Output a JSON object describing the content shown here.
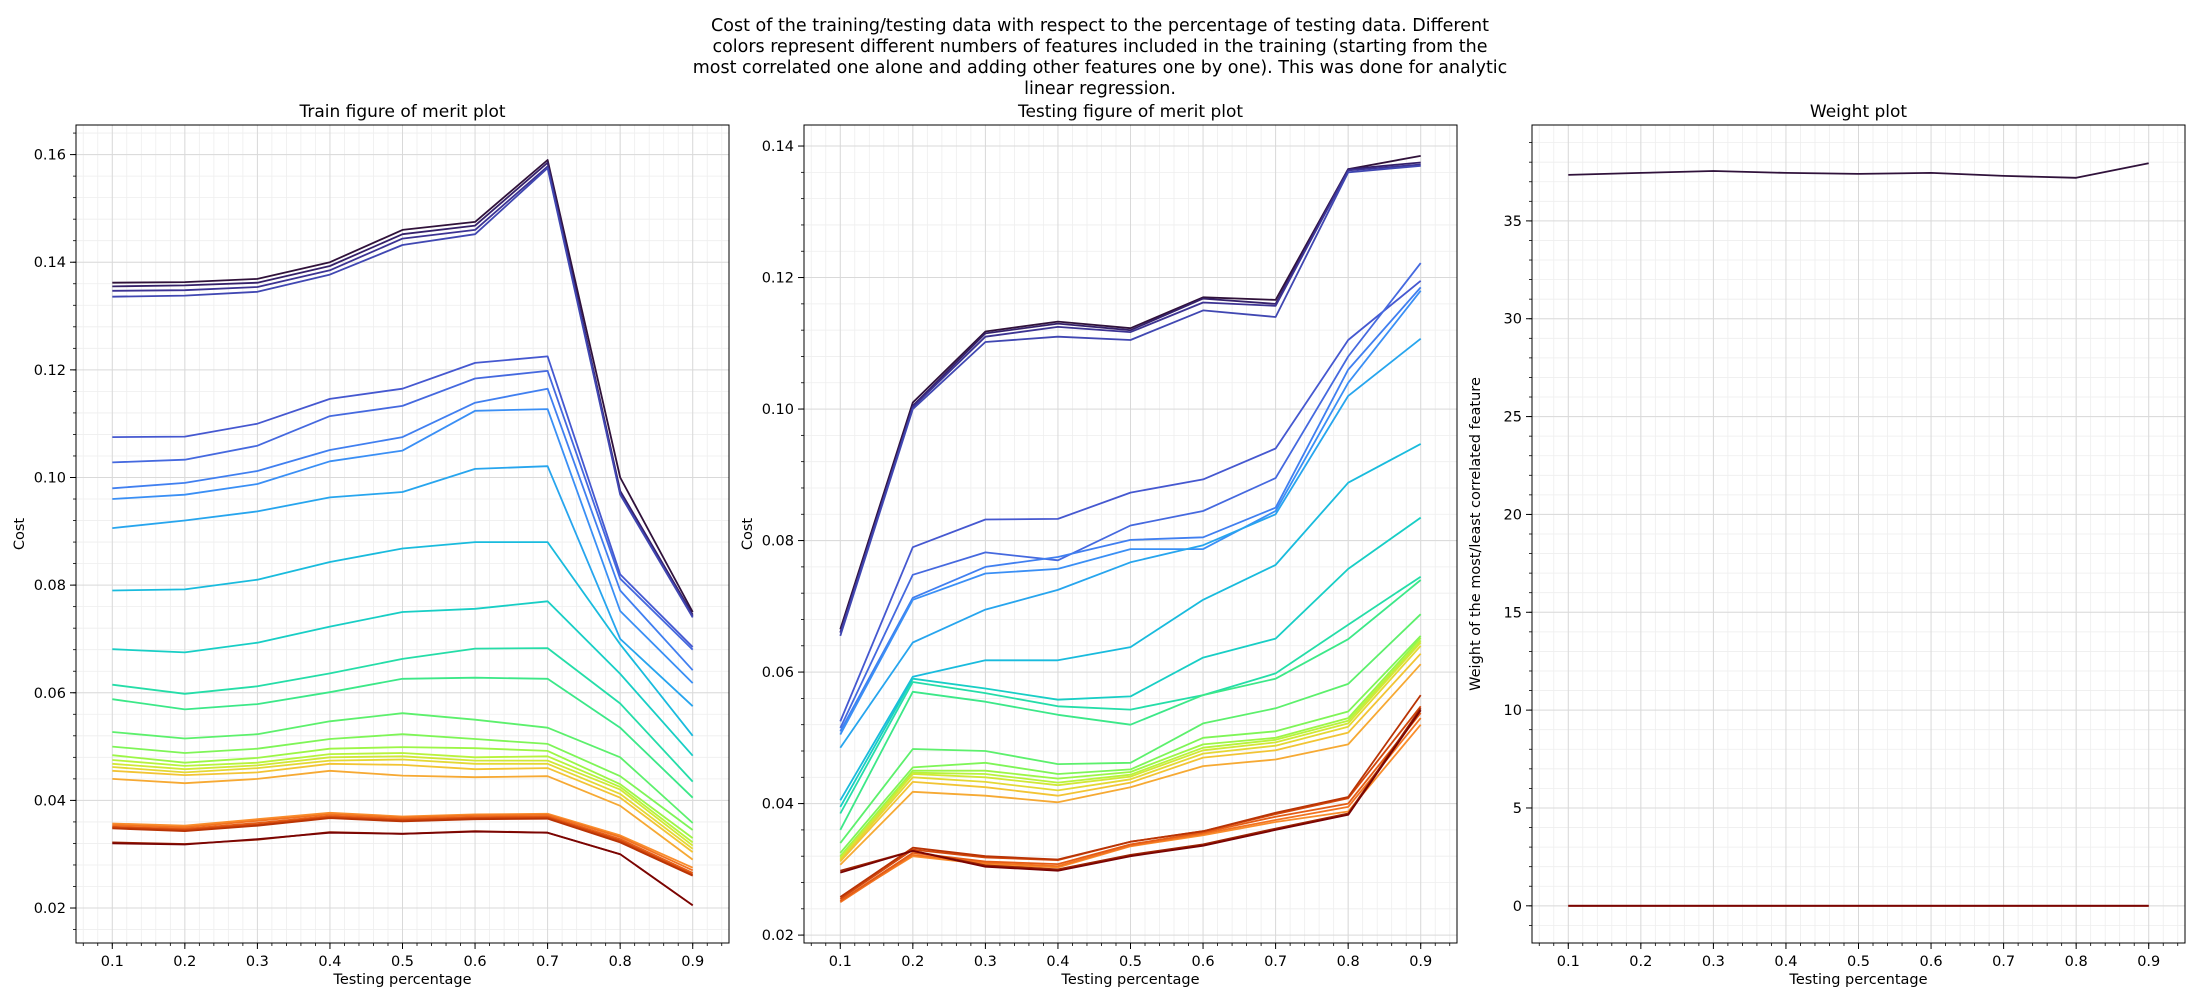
{
  "suptitle": "Cost of the training/testing data with respect to the percentage of testing data. Different\ncolors represent different numbers of features included in the training (starting from the\nmost correlated one alone and adding other features one by one). This was done for analytic\nlinear regression.",
  "chart_data": [
    {
      "type": "line",
      "title": "Train figure of merit plot",
      "xlabel": "Testing percentage",
      "ylabel": "Cost",
      "xlim": [
        0.05,
        0.95
      ],
      "ylim": [
        0.0135,
        0.1655
      ],
      "xticks": [
        "0.1",
        "0.2",
        "0.3",
        "0.4",
        "0.5",
        "0.6",
        "0.7",
        "0.8",
        "0.9"
      ],
      "yticks": [
        "0.02",
        "0.04",
        "0.06",
        "0.08",
        "0.10",
        "0.12",
        "0.14",
        "0.16"
      ],
      "grid": true,
      "x": [
        0.1,
        0.2,
        0.3,
        0.4,
        0.5,
        0.6,
        0.7,
        0.8,
        0.9
      ],
      "series": [
        {
          "color": "#30123b",
          "values": [
            0.1362,
            0.1363,
            0.1369,
            0.14,
            0.146,
            0.1475,
            0.159,
            0.1,
            0.075
          ]
        },
        {
          "color": "#35206a",
          "values": [
            0.1355,
            0.1357,
            0.1362,
            0.1393,
            0.1452,
            0.1468,
            0.1585,
            0.0975,
            0.0745
          ]
        },
        {
          "color": "#3c3393",
          "values": [
            0.1347,
            0.1348,
            0.1354,
            0.1385,
            0.1444,
            0.146,
            0.1578,
            0.097,
            0.0742
          ]
        },
        {
          "color": "#4047b2",
          "values": [
            0.1336,
            0.1338,
            0.1345,
            0.1377,
            0.1432,
            0.1452,
            0.1575,
            0.0968,
            0.074
          ]
        },
        {
          "color": "#4558d0",
          "values": [
            0.1075,
            0.1076,
            0.11,
            0.1146,
            0.1165,
            0.1213,
            0.1225,
            0.082,
            0.0685
          ]
        },
        {
          "color": "#4569df",
          "values": [
            0.1028,
            0.1033,
            0.1059,
            0.1114,
            0.1133,
            0.1184,
            0.1198,
            0.0812,
            0.068
          ]
        },
        {
          "color": "#407ff0",
          "values": [
            0.098,
            0.099,
            0.1012,
            0.1051,
            0.1075,
            0.1139,
            0.1165,
            0.079,
            0.0642
          ]
        },
        {
          "color": "#3a8ff5",
          "values": [
            0.096,
            0.0968,
            0.0988,
            0.103,
            0.105,
            0.1124,
            0.1127,
            0.0752,
            0.0618
          ]
        },
        {
          "color": "#27a5ee",
          "values": [
            0.0906,
            0.092,
            0.0937,
            0.0963,
            0.0973,
            0.1016,
            0.1021,
            0.07,
            0.0575
          ]
        },
        {
          "color": "#19bbdd",
          "values": [
            0.079,
            0.0792,
            0.081,
            0.0843,
            0.0868,
            0.088,
            0.088,
            0.069,
            0.052
          ]
        },
        {
          "color": "#18cec5",
          "values": [
            0.0681,
            0.0675,
            0.0693,
            0.0723,
            0.075,
            0.0756,
            0.077,
            0.0635,
            0.0483
          ]
        },
        {
          "color": "#25dda8",
          "values": [
            0.0615,
            0.0598,
            0.0612,
            0.0636,
            0.0663,
            0.0682,
            0.0683,
            0.058,
            0.0435
          ]
        },
        {
          "color": "#3ce888",
          "values": [
            0.0588,
            0.0569,
            0.0579,
            0.0601,
            0.0626,
            0.0628,
            0.0626,
            0.0535,
            0.0405
          ]
        },
        {
          "color": "#5cf06c",
          "values": [
            0.0527,
            0.0515,
            0.0523,
            0.0547,
            0.0562,
            0.055,
            0.0535,
            0.048,
            0.0358
          ]
        },
        {
          "color": "#7ef557",
          "values": [
            0.05,
            0.0488,
            0.0496,
            0.0514,
            0.0523,
            0.0514,
            0.0505,
            0.0445,
            0.0345
          ]
        },
        {
          "color": "#9cf646",
          "values": [
            0.0484,
            0.047,
            0.0479,
            0.0496,
            0.0499,
            0.0497,
            0.0492,
            0.043,
            0.033
          ]
        },
        {
          "color": "#b8f33c",
          "values": [
            0.0475,
            0.0464,
            0.047,
            0.0486,
            0.0488,
            0.048,
            0.0482,
            0.0425,
            0.0322
          ]
        },
        {
          "color": "#d1e836",
          "values": [
            0.0468,
            0.0458,
            0.0465,
            0.048,
            0.0482,
            0.0474,
            0.0474,
            0.042,
            0.0316
          ]
        },
        {
          "color": "#e4d834",
          "values": [
            0.0462,
            0.0452,
            0.046,
            0.0474,
            0.0476,
            0.0468,
            0.0468,
            0.0412,
            0.031
          ]
        },
        {
          "color": "#f2c434",
          "values": [
            0.0455,
            0.0447,
            0.0452,
            0.0468,
            0.0466,
            0.0458,
            0.046,
            0.0405,
            0.0304
          ]
        },
        {
          "color": "#f6a933",
          "values": [
            0.044,
            0.0432,
            0.044,
            0.0455,
            0.0446,
            0.0443,
            0.0445,
            0.039,
            0.029
          ]
        },
        {
          "color": "#f98d2c",
          "values": [
            0.0357,
            0.0353,
            0.0365,
            0.0377,
            0.037,
            0.0374,
            0.0375,
            0.0335,
            0.0275
          ]
        },
        {
          "color": "#f27321",
          "values": [
            0.0354,
            0.035,
            0.0362,
            0.0374,
            0.0368,
            0.0372,
            0.0373,
            0.0332,
            0.027
          ]
        },
        {
          "color": "#e45c15",
          "values": [
            0.0351,
            0.0347,
            0.0358,
            0.0371,
            0.0365,
            0.0369,
            0.037,
            0.0328,
            0.0265
          ]
        },
        {
          "color": "#d1460a",
          "values": [
            0.035,
            0.0345,
            0.0355,
            0.0369,
            0.0363,
            0.0367,
            0.0368,
            0.0325,
            0.0262
          ]
        },
        {
          "color": "#b93405",
          "values": [
            0.0348,
            0.0343,
            0.0353,
            0.0367,
            0.0361,
            0.0365,
            0.0366,
            0.0322,
            0.026
          ]
        },
        {
          "color": "#9b2303",
          "values": [
            0.0322,
            0.0319,
            0.0327,
            0.0341,
            0.0338,
            0.0343,
            0.034,
            0.03,
            0.0205
          ]
        },
        {
          "color": "#7a0403",
          "values": [
            0.032,
            0.0318,
            0.0328,
            0.034,
            0.0338,
            0.0342,
            0.034,
            0.03,
            0.0205
          ]
        }
      ]
    },
    {
      "type": "line",
      "title": "Testing figure of merit plot",
      "xlabel": "Testing percentage",
      "ylabel": "Cost",
      "xlim": [
        0.05,
        0.95
      ],
      "ylim": [
        0.0188,
        0.1432
      ],
      "xticks": [
        "0.1",
        "0.2",
        "0.3",
        "0.4",
        "0.5",
        "0.6",
        "0.7",
        "0.8",
        "0.9"
      ],
      "yticks": [
        "0.02",
        "0.04",
        "0.06",
        "0.08",
        "0.10",
        "0.12",
        "0.14"
      ],
      "grid": true,
      "x": [
        0.1,
        0.2,
        0.3,
        0.4,
        0.5,
        0.6,
        0.7,
        0.8,
        0.9
      ],
      "series": [
        {
          "color": "#30123b",
          "values": [
            0.0665,
            0.101,
            0.1118,
            0.1133,
            0.1123,
            0.117,
            0.1166,
            0.1365,
            0.1385
          ]
        },
        {
          "color": "#35206a",
          "values": [
            0.066,
            0.1005,
            0.1115,
            0.113,
            0.112,
            0.1168,
            0.116,
            0.1365,
            0.1375
          ]
        },
        {
          "color": "#3c3393",
          "values": [
            0.066,
            0.1003,
            0.111,
            0.1125,
            0.1117,
            0.1162,
            0.1157,
            0.1363,
            0.1372
          ]
        },
        {
          "color": "#4047b2",
          "values": [
            0.0655,
            0.1,
            0.1102,
            0.111,
            0.1105,
            0.115,
            0.114,
            0.136,
            0.137
          ]
        },
        {
          "color": "#4558d0",
          "values": [
            0.0525,
            0.079,
            0.0832,
            0.0833,
            0.0873,
            0.0893,
            0.094,
            0.1105,
            0.1195
          ]
        },
        {
          "color": "#4569df",
          "values": [
            0.0515,
            0.0748,
            0.0782,
            0.077,
            0.0823,
            0.0845,
            0.0895,
            0.108,
            0.1222
          ]
        },
        {
          "color": "#407ff0",
          "values": [
            0.051,
            0.0713,
            0.076,
            0.0775,
            0.0801,
            0.0805,
            0.085,
            0.106,
            0.1185
          ]
        },
        {
          "color": "#3a8ff5",
          "values": [
            0.0505,
            0.071,
            0.075,
            0.0757,
            0.0787,
            0.0787,
            0.0845,
            0.104,
            0.118
          ]
        },
        {
          "color": "#27a5ee",
          "values": [
            0.0485,
            0.0645,
            0.0695,
            0.0725,
            0.0767,
            0.0793,
            0.084,
            0.102,
            0.1107
          ]
        },
        {
          "color": "#19bbdd",
          "values": [
            0.0405,
            0.0593,
            0.0618,
            0.0618,
            0.0638,
            0.071,
            0.0763,
            0.0888,
            0.0947
          ]
        },
        {
          "color": "#18cec5",
          "values": [
            0.0395,
            0.059,
            0.0575,
            0.0558,
            0.0563,
            0.0622,
            0.0651,
            0.0757,
            0.0835
          ]
        },
        {
          "color": "#25dda8",
          "values": [
            0.0385,
            0.0585,
            0.0568,
            0.0548,
            0.0543,
            0.0565,
            0.0598,
            0.0672,
            0.0745
          ]
        },
        {
          "color": "#3ce888",
          "values": [
            0.036,
            0.057,
            0.0555,
            0.0535,
            0.052,
            0.0565,
            0.059,
            0.065,
            0.074
          ]
        },
        {
          "color": "#5cf06c",
          "values": [
            0.034,
            0.0483,
            0.048,
            0.046,
            0.0462,
            0.0522,
            0.0545,
            0.0582,
            0.0688
          ]
        },
        {
          "color": "#7ef557",
          "values": [
            0.0325,
            0.0455,
            0.0462,
            0.0445,
            0.0452,
            0.05,
            0.051,
            0.054,
            0.0655
          ]
        },
        {
          "color": "#9cf646",
          "values": [
            0.032,
            0.045,
            0.045,
            0.0438,
            0.0448,
            0.049,
            0.05,
            0.053,
            0.0652
          ]
        },
        {
          "color": "#b8f33c",
          "values": [
            0.0318,
            0.0447,
            0.0445,
            0.0432,
            0.0444,
            0.0485,
            0.0497,
            0.0526,
            0.0648
          ]
        },
        {
          "color": "#d1e836",
          "values": [
            0.0316,
            0.0445,
            0.044,
            0.0428,
            0.0441,
            0.0481,
            0.0493,
            0.0522,
            0.0645
          ]
        },
        {
          "color": "#e4d834",
          "values": [
            0.0314,
            0.044,
            0.0433,
            0.042,
            0.0437,
            0.0476,
            0.0488,
            0.0517,
            0.064
          ]
        },
        {
          "color": "#f2c434",
          "values": [
            0.0312,
            0.0433,
            0.0425,
            0.0412,
            0.0432,
            0.047,
            0.0481,
            0.0508,
            0.0628
          ]
        },
        {
          "color": "#f6a933",
          "values": [
            0.0307,
            0.0418,
            0.0412,
            0.0402,
            0.0425,
            0.0457,
            0.0467,
            0.049,
            0.0612
          ]
        },
        {
          "color": "#f98d2c",
          "values": [
            0.0252,
            0.032,
            0.0308,
            0.0303,
            0.0335,
            0.0352,
            0.0372,
            0.0388,
            0.052
          ]
        },
        {
          "color": "#f27321",
          "values": [
            0.025,
            0.0322,
            0.031,
            0.0305,
            0.0336,
            0.0354,
            0.0375,
            0.0395,
            0.053
          ]
        },
        {
          "color": "#e45c15",
          "values": [
            0.0252,
            0.0325,
            0.0312,
            0.0308,
            0.0338,
            0.0356,
            0.038,
            0.04,
            0.0538
          ]
        },
        {
          "color": "#d1460a",
          "values": [
            0.0255,
            0.033,
            0.0318,
            0.0314,
            0.0342,
            0.0358,
            0.0384,
            0.0408,
            0.0548
          ]
        },
        {
          "color": "#b93405",
          "values": [
            0.0258,
            0.0333,
            0.032,
            0.0315,
            0.0342,
            0.0358,
            0.0386,
            0.041,
            0.0565
          ]
        },
        {
          "color": "#9b2303",
          "values": [
            0.0298,
            0.0328,
            0.0306,
            0.03,
            0.0322,
            0.0338,
            0.0362,
            0.0385,
            0.0545
          ]
        },
        {
          "color": "#7a0403",
          "values": [
            0.0295,
            0.0328,
            0.0304,
            0.0298,
            0.032,
            0.0336,
            0.036,
            0.0383,
            0.0542
          ]
        }
      ]
    },
    {
      "type": "line",
      "title": "Weight plot",
      "xlabel": "Testing percentage",
      "ylabel": "Weight of the most/least correlated feature",
      "xlim": [
        0.05,
        0.95
      ],
      "ylim": [
        -1.9,
        39.9
      ],
      "xticks": [
        "0.1",
        "0.2",
        "0.3",
        "0.4",
        "0.5",
        "0.6",
        "0.7",
        "0.8",
        "0.9"
      ],
      "yticks": [
        "0",
        "5",
        "10",
        "15",
        "20",
        "25",
        "30",
        "35"
      ],
      "grid": true,
      "x": [
        0.1,
        0.2,
        0.3,
        0.4,
        0.5,
        0.6,
        0.7,
        0.8,
        0.9
      ],
      "series": [
        {
          "color": "#30123b",
          "values": [
            37.35,
            37.45,
            37.55,
            37.45,
            37.4,
            37.45,
            37.3,
            37.2,
            37.95
          ]
        },
        {
          "color": "#9b2303",
          "values": [
            0.0,
            0.0,
            0.0,
            0.0,
            0.0,
            0.0,
            0.0,
            0.0,
            0.0
          ]
        },
        {
          "color": "#7a0403",
          "values": [
            0.0,
            0.0,
            0.0,
            0.0,
            0.0,
            0.0,
            0.0,
            0.0,
            0.0
          ]
        }
      ]
    }
  ]
}
